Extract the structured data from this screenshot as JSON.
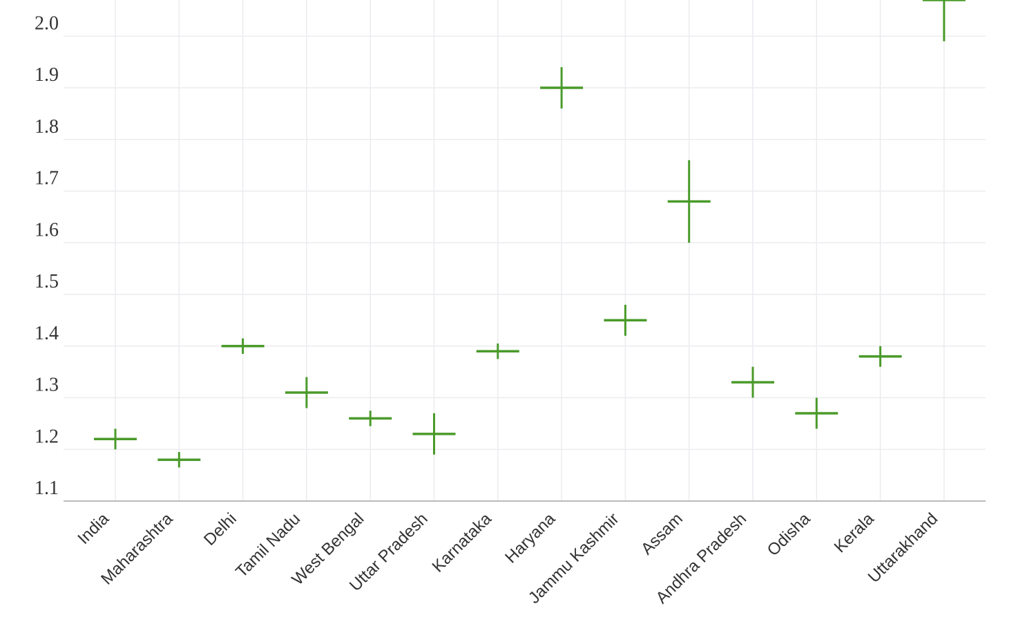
{
  "chart_data": {
    "type": "errorcross",
    "categories": [
      "India",
      "Maharashtra",
      "Delhi",
      "Tamil Nadu",
      "West Bengal",
      "Uttar Pradesh",
      "Karnataka",
      "Haryana",
      "Jammu Kashmir",
      "Assam",
      "Andhra Pradesh",
      "Odisha",
      "Kerala",
      "Uttarakhand"
    ],
    "values": [
      1.22,
      1.18,
      1.4,
      1.31,
      1.26,
      1.23,
      1.39,
      1.9,
      1.45,
      1.68,
      1.33,
      1.27,
      1.38,
      2.07
    ],
    "errors": [
      0.02,
      0.015,
      0.015,
      0.03,
      0.015,
      0.04,
      0.015,
      0.04,
      0.03,
      0.08,
      0.03,
      0.03,
      0.02,
      0.08
    ],
    "color": "#4a9a2a",
    "ylim": [
      1.1,
      2.07
    ],
    "yticks": [
      1.1,
      1.2,
      1.3,
      1.4,
      1.5,
      1.6,
      1.7,
      1.8,
      1.9,
      {
        "value": 2.0,
        "label": "2.0"
      }
    ],
    "grid": true
  }
}
